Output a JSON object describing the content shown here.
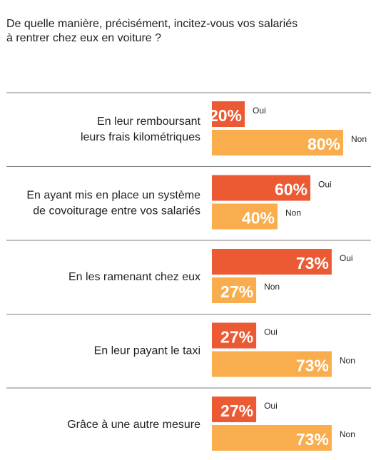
{
  "chart_data": {
    "type": "bar",
    "orientation": "horizontal",
    "title_lines": [
      "De quelle manière, précisément, incitez-vous vos salariés",
      "à rentrer chez eux en voiture ?"
    ],
    "categories": [
      [
        "En leur remboursant",
        "leurs frais kilométriques"
      ],
      [
        "En ayant mis en place un système",
        "de covoiturage entre vos salariés"
      ],
      [
        "En les ramenant chez eux"
      ],
      [
        "En leur payant le taxi"
      ],
      [
        "Grâce à une autre mesure"
      ]
    ],
    "series": [
      {
        "name": "Oui",
        "values": [
          20,
          60,
          73,
          27,
          27
        ],
        "labels": [
          "20%",
          "60%",
          "73%",
          "27%",
          "27%"
        ],
        "color": "#ec5a34"
      },
      {
        "name": "Non",
        "values": [
          80,
          40,
          27,
          73,
          73
        ],
        "labels": [
          "80%",
          "40%",
          "27%",
          "73%",
          "73%"
        ],
        "color": "#f9ad4d"
      }
    ],
    "xlim": [
      0,
      100
    ],
    "legend": "inline labels beside each bar",
    "grid": false,
    "divider_color": "#7f7f7f"
  }
}
